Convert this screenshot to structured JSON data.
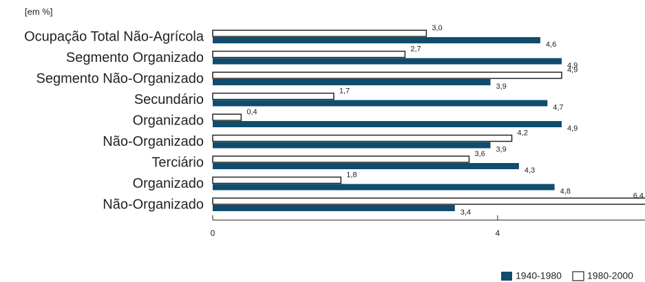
{
  "chart_data": {
    "type": "bar",
    "orientation": "horizontal",
    "unit_label": "[em %]",
    "categories": [
      "Ocupação Total Não-Agrícola",
      "Segmento Organizado",
      "Segmento Não-Organizado",
      "Secundário",
      "Organizado",
      "Não-Organizado",
      "Terciário",
      "Organizado",
      "Não-Organizado"
    ],
    "series": [
      {
        "name": "1940-1980",
        "color": "#0f4c6e",
        "values": [
          4.6,
          4.9,
          3.9,
          4.7,
          4.9,
          3.9,
          4.3,
          4.8,
          3.4
        ],
        "value_labels": [
          "4,6",
          "4,9",
          "3,9",
          "4,7",
          "4,9",
          "3,9",
          "4,3",
          "4,8",
          "3,4"
        ]
      },
      {
        "name": "1980-2000",
        "color": "#ffffff",
        "values": [
          3.0,
          2.7,
          4.9,
          1.7,
          0.4,
          4.2,
          3.6,
          1.8,
          6.4
        ],
        "value_labels": [
          "3,0",
          "2,7",
          "4,9",
          "1,7",
          "0,4",
          "4,2",
          "3,6",
          "1,8",
          "6,4"
        ]
      }
    ],
    "xlim": [
      0,
      6.07
    ],
    "xticks": [
      0,
      4
    ]
  }
}
